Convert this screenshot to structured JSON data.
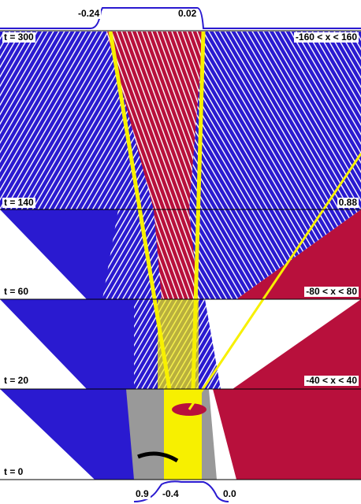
{
  "top_profile": {
    "labels": [
      "-0.24",
      "0.02"
    ]
  },
  "panels": [
    {
      "left_label": "t = 300",
      "right_label": "-160 < x < 160"
    },
    {
      "left_label": "t = 140",
      "right_label": "0.88"
    },
    {
      "left_label": "t = 60",
      "right_label": "-80 < x < 80"
    },
    {
      "left_label": "t = 20",
      "right_label": "-40 < x < 40"
    },
    {
      "left_label": "t = 0"
    }
  ],
  "bottom_profile": {
    "labels": [
      "0.9",
      "-0.4",
      "0.0"
    ]
  }
}
